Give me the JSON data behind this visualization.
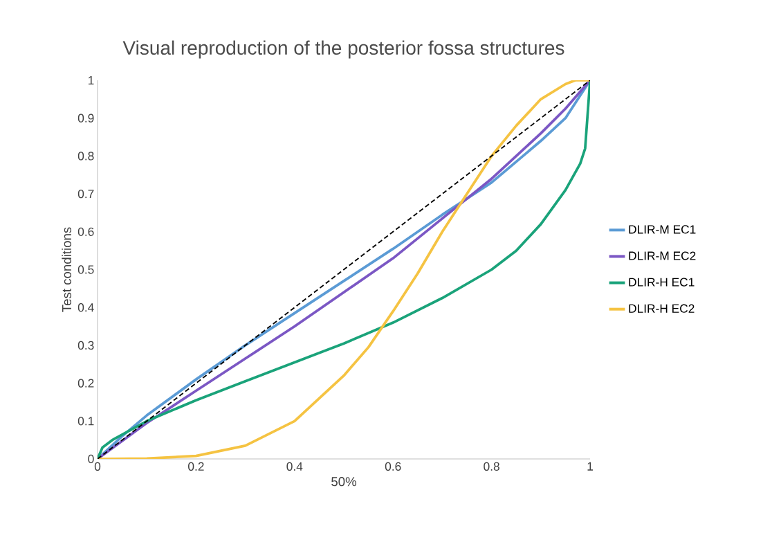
{
  "chart_data": {
    "type": "line",
    "title": "Visual reproduction of the posterior fossa structures",
    "xlabel": "50%",
    "ylabel": "Test conditions",
    "xlim": [
      0,
      1
    ],
    "ylim": [
      0,
      1
    ],
    "xticks": [
      0,
      0.2,
      0.4,
      0.6,
      0.8,
      1
    ],
    "yticks": [
      0,
      0.1,
      0.2,
      0.3,
      0.4,
      0.5,
      0.6,
      0.7,
      0.8,
      0.9,
      1
    ],
    "grid": false,
    "legend": "right",
    "marker": "none",
    "series": [
      {
        "name": "DLIR-M EC1",
        "color": "#5b9bd5",
        "x": [
          0,
          0.05,
          0.1,
          0.2,
          0.3,
          0.4,
          0.5,
          0.6,
          0.7,
          0.8,
          0.9,
          0.95,
          1
        ],
        "values": [
          0,
          0.06,
          0.115,
          0.21,
          0.3,
          0.385,
          0.47,
          0.555,
          0.645,
          0.73,
          0.84,
          0.9,
          1
        ]
      },
      {
        "name": "DLIR-M EC2",
        "color": "#7b57c4",
        "x": [
          0,
          0.1,
          0.2,
          0.3,
          0.4,
          0.5,
          0.6,
          0.7,
          0.8,
          0.9,
          0.95,
          1
        ],
        "values": [
          0,
          0.095,
          0.18,
          0.265,
          0.35,
          0.44,
          0.53,
          0.635,
          0.74,
          0.86,
          0.925,
          1
        ]
      },
      {
        "name": "DLIR-H EC1",
        "color": "#1aa37a",
        "x": [
          0,
          0.01,
          0.03,
          0.1,
          0.2,
          0.3,
          0.4,
          0.5,
          0.6,
          0.7,
          0.8,
          0.85,
          0.9,
          0.95,
          0.98,
          0.99,
          1
        ],
        "values": [
          0,
          0.03,
          0.05,
          0.1,
          0.155,
          0.205,
          0.255,
          0.305,
          0.36,
          0.425,
          0.5,
          0.55,
          0.62,
          0.71,
          0.78,
          0.82,
          1
        ]
      },
      {
        "name": "DLIR-H EC2",
        "color": "#f5c342",
        "x": [
          0,
          0.1,
          0.2,
          0.3,
          0.4,
          0.5,
          0.55,
          0.6,
          0.65,
          0.7,
          0.75,
          0.8,
          0.85,
          0.9,
          0.95,
          0.97,
          1
        ],
        "values": [
          0,
          0.001,
          0.008,
          0.035,
          0.1,
          0.22,
          0.295,
          0.39,
          0.49,
          0.6,
          0.7,
          0.8,
          0.88,
          0.95,
          0.99,
          1,
          1
        ]
      },
      {
        "color": "#000000",
        "line_style": "dashed",
        "x": [
          0,
          1
        ],
        "values": [
          0,
          1
        ]
      }
    ]
  }
}
